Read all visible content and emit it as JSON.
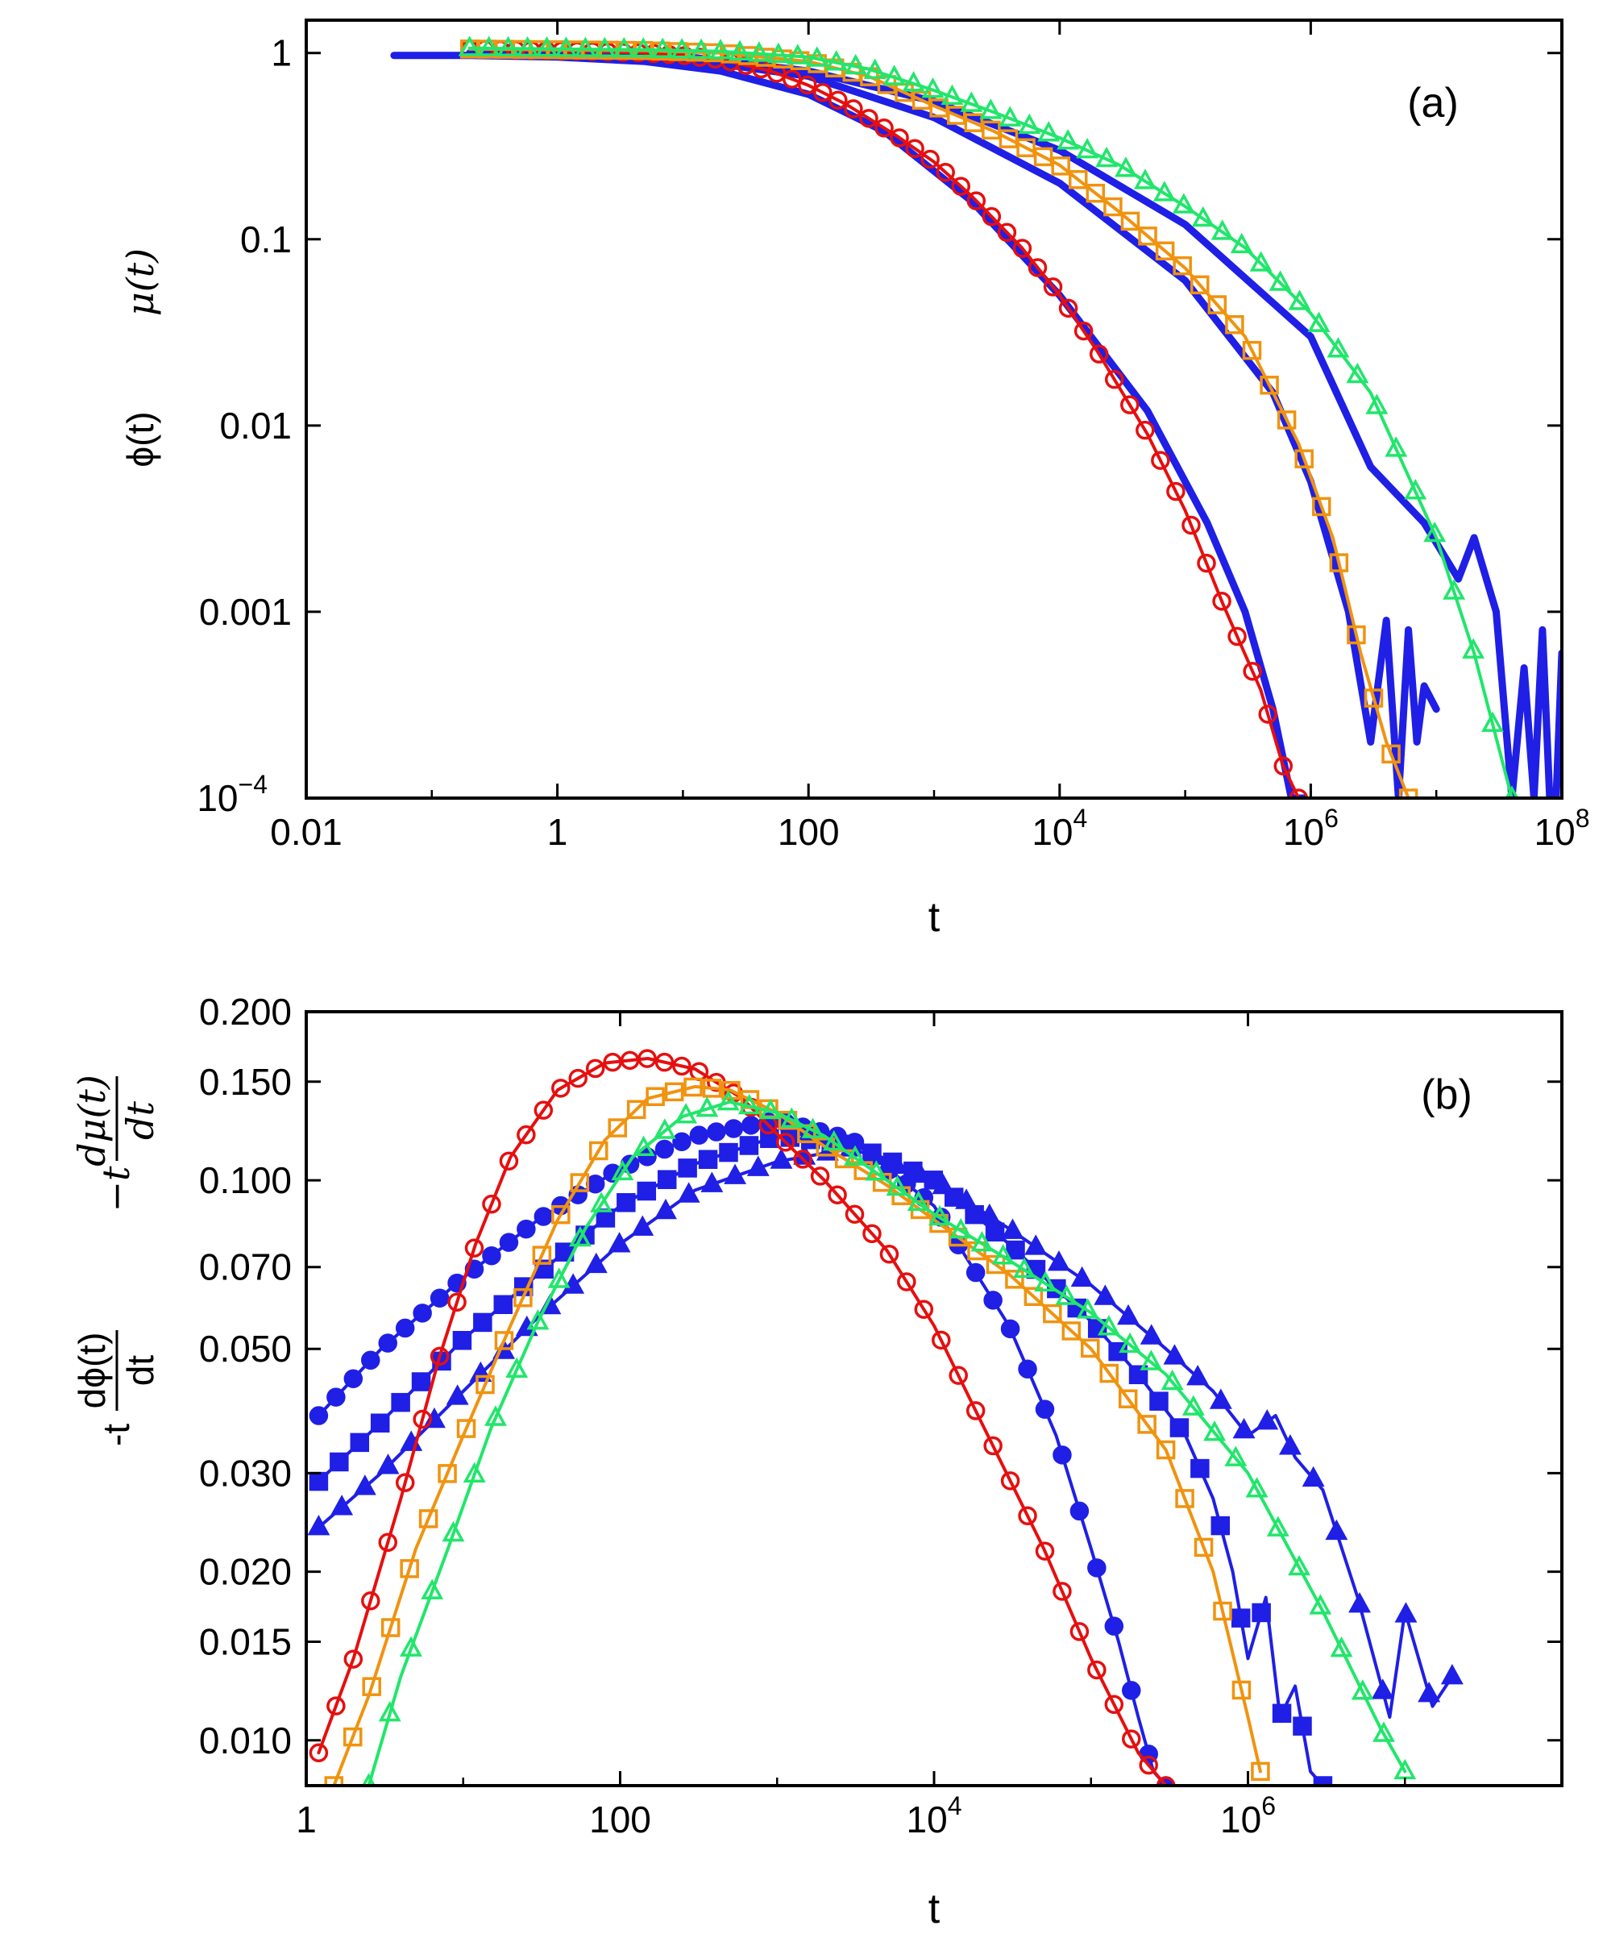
{
  "chart_data": [
    {
      "id": "a",
      "type": "line",
      "panel_label": "(a)",
      "xscale": "log",
      "yscale": "log",
      "xlim": [
        0.01,
        100000000
      ],
      "ylim": [
        0.0001,
        1.5
      ],
      "xlabel": "t",
      "ylabel_parts": [
        "ϕ(t)",
        "μ(t)"
      ],
      "xticks": [
        {
          "value": 0.01,
          "label": "0.01",
          "exp": ""
        },
        {
          "value": 1,
          "label": "1",
          "exp": ""
        },
        {
          "value": 100,
          "label": "100",
          "exp": ""
        },
        {
          "value": 10000,
          "label": "10",
          "exp": "4"
        },
        {
          "value": 1000000,
          "label": "10",
          "exp": "6"
        },
        {
          "value": 100000000,
          "label": "10",
          "exp": "8"
        }
      ],
      "yticks": [
        {
          "value": 1,
          "label": "1",
          "exp": ""
        },
        {
          "value": 0.1,
          "label": "0.1",
          "exp": ""
        },
        {
          "value": 0.01,
          "label": "0.01",
          "exp": ""
        },
        {
          "value": 0.001,
          "label": "0.001",
          "exp": ""
        },
        {
          "value": 0.0001,
          "label": "10",
          "exp": "−4"
        }
      ],
      "series": [
        {
          "name": "phi-1",
          "color": "#1f1fe6",
          "marker": "none",
          "width": 9,
          "x": [
            0.05,
            0.2,
            1,
            5,
            20,
            100,
            400,
            2000,
            10000,
            50000,
            150000,
            300000,
            500000,
            700000,
            900000
          ],
          "y": [
            0.97,
            0.97,
            0.95,
            0.9,
            0.8,
            0.6,
            0.38,
            0.16,
            0.05,
            0.012,
            0.003,
            0.001,
            0.0003,
            0.0001,
            0.0001
          ]
        },
        {
          "name": "phi-2",
          "color": "#1f1fe6",
          "marker": "none",
          "width": 9,
          "x": [
            0.2,
            1,
            10,
            100,
            1000,
            10000,
            100000,
            500000,
            1000000,
            2000000,
            3000000,
            4000000,
            5000000,
            6000000,
            7000000,
            8000000,
            10000000
          ],
          "y": [
            0.99,
            0.98,
            0.93,
            0.75,
            0.45,
            0.2,
            0.06,
            0.015,
            0.005,
            0.001,
            0.0002,
            0.0009,
            0.0001,
            0.0008,
            0.0002,
            0.0004,
            0.0003
          ]
        },
        {
          "name": "phi-3",
          "color": "#1f1fe6",
          "marker": "none",
          "width": 9,
          "x": [
            0.2,
            1,
            10,
            100,
            1000,
            10000,
            100000,
            1000000,
            3000000,
            8000000,
            15000000,
            20000000,
            30000000,
            40000000,
            50000000,
            60000000,
            70000000,
            80000000,
            90000000,
            100000000
          ],
          "y": [
            1,
            0.99,
            0.96,
            0.8,
            0.55,
            0.3,
            0.12,
            0.03,
            0.006,
            0.003,
            0.0015,
            0.0025,
            0.001,
            0.0001,
            0.0005,
            0.0001,
            0.0008,
            0.0001,
            0.0001,
            0.0006
          ]
        },
        {
          "name": "mu-red",
          "color": "#e60f0f",
          "marker": "circle",
          "width": 4,
          "x": [
            0.2,
            0.4,
            1,
            2,
            5,
            10,
            20,
            50,
            100,
            200,
            500,
            1000,
            2000,
            5000,
            10000,
            20000,
            50000,
            100000,
            200000,
            400000,
            600000,
            800000
          ],
          "y": [
            1.05,
            1.04,
            1.03,
            1.02,
            1.0,
            0.97,
            0.92,
            0.8,
            0.67,
            0.53,
            0.36,
            0.26,
            0.17,
            0.09,
            0.05,
            0.025,
            0.009,
            0.0035,
            0.0011,
            0.00038,
            0.00015,
            0.0001
          ]
        },
        {
          "name": "mu-orange",
          "color": "#f0930f",
          "marker": "square",
          "width": 4,
          "x": [
            0.2,
            1,
            5,
            20,
            100,
            300,
            1000,
            3000,
            10000,
            30000,
            100000,
            300000,
            800000,
            1500000,
            2500000,
            4000000,
            6000000
          ],
          "y": [
            1.05,
            1.04,
            1.03,
            1.0,
            0.9,
            0.75,
            0.52,
            0.38,
            0.25,
            0.14,
            0.07,
            0.03,
            0.008,
            0.0025,
            0.0006,
            0.0002,
            0.0001
          ]
        },
        {
          "name": "mu-green",
          "color": "#21e66b",
          "marker": "triangle",
          "width": 4,
          "x": [
            0.2,
            1,
            5,
            20,
            100,
            300,
            1000,
            3000,
            10000,
            30000,
            100000,
            300000,
            1000000,
            3000000,
            10000000,
            20000000,
            40000000
          ],
          "y": [
            1.06,
            1.05,
            1.04,
            1.02,
            0.95,
            0.82,
            0.63,
            0.48,
            0.35,
            0.25,
            0.15,
            0.09,
            0.04,
            0.015,
            0.0025,
            0.0006,
            0.0001
          ]
        }
      ]
    },
    {
      "id": "b",
      "type": "line",
      "panel_label": "(b)",
      "xscale": "log",
      "yscale": "log",
      "xlim": [
        1,
        100000000
      ],
      "ylim": [
        0.0083,
        0.2
      ],
      "xlabel": "t",
      "xticks": [
        {
          "value": 1,
          "label": "1",
          "exp": ""
        },
        {
          "value": 100,
          "label": "100",
          "exp": ""
        },
        {
          "value": 10000,
          "label": "10",
          "exp": "4"
        },
        {
          "value": 1000000,
          "label": "10",
          "exp": "6"
        }
      ],
      "yticks": [
        {
          "value": 0.2,
          "label": "0.200",
          "exp": ""
        },
        {
          "value": 0.15,
          "label": "0.150",
          "exp": ""
        },
        {
          "value": 0.1,
          "label": "0.100",
          "exp": ""
        },
        {
          "value": 0.07,
          "label": "0.070",
          "exp": ""
        },
        {
          "value": 0.05,
          "label": "0.050",
          "exp": ""
        },
        {
          "value": 0.03,
          "label": "0.030",
          "exp": ""
        },
        {
          "value": 0.02,
          "label": "0.020",
          "exp": ""
        },
        {
          "value": 0.015,
          "label": "0.015",
          "exp": ""
        },
        {
          "value": 0.01,
          "label": "0.010",
          "exp": ""
        }
      ],
      "series": [
        {
          "name": "phi-deriv-circle",
          "color": "#1f1fe6",
          "marker": "circle-filled",
          "width": 4,
          "x": [
            1.2,
            3,
            10,
            30,
            100,
            300,
            1000,
            3000,
            10000,
            30000,
            60000,
            100000,
            150000,
            200000,
            250000,
            300000
          ],
          "y": [
            0.038,
            0.05,
            0.067,
            0.085,
            0.105,
            0.12,
            0.128,
            0.118,
            0.09,
            0.055,
            0.035,
            0.022,
            0.015,
            0.011,
            0.0088,
            0.0083
          ]
        },
        {
          "name": "phi-deriv-square",
          "color": "#1f1fe6",
          "marker": "square-filled",
          "width": 4,
          "x": [
            1.2,
            3,
            10,
            30,
            100,
            300,
            1000,
            3000,
            10000,
            30000,
            100000,
            200000,
            400000,
            600000,
            800000,
            1000000,
            1300000,
            1600000,
            2000000,
            2500000,
            3000000
          ],
          "y": [
            0.029,
            0.037,
            0.052,
            0.068,
            0.09,
            0.107,
            0.12,
            0.116,
            0.1,
            0.077,
            0.056,
            0.045,
            0.035,
            0.027,
            0.02,
            0.014,
            0.018,
            0.011,
            0.0125,
            0.0088,
            0.0083
          ]
        },
        {
          "name": "phi-deriv-triangle",
          "color": "#1f1fe6",
          "marker": "triangle-filled",
          "width": 4,
          "x": [
            1.2,
            3,
            10,
            30,
            100,
            300,
            1000,
            3000,
            10000,
            30000,
            100000,
            300000,
            600000,
            1000000,
            1500000,
            2000000,
            3000000,
            5000000,
            8000000,
            10000000,
            15000000,
            20000000
          ],
          "y": [
            0.024,
            0.03,
            0.042,
            0.057,
            0.077,
            0.096,
            0.108,
            0.114,
            0.1,
            0.082,
            0.065,
            0.05,
            0.042,
            0.035,
            0.038,
            0.032,
            0.028,
            0.018,
            0.011,
            0.017,
            0.0115,
            0.013
          ]
        },
        {
          "name": "mu-deriv-red",
          "color": "#e60f0f",
          "marker": "circle",
          "width": 4,
          "x": [
            1.2,
            2,
            4,
            7,
            12,
            20,
            40,
            80,
            150,
            300,
            600,
            1000,
            2000,
            5000,
            10000,
            20000,
            50000,
            100000,
            200000,
            300000
          ],
          "y": [
            0.0095,
            0.014,
            0.027,
            0.048,
            0.077,
            0.11,
            0.145,
            0.162,
            0.165,
            0.158,
            0.14,
            0.121,
            0.1,
            0.075,
            0.055,
            0.037,
            0.022,
            0.014,
            0.0095,
            0.0083
          ]
        },
        {
          "name": "mu-deriv-orange",
          "color": "#f0930f",
          "marker": "square",
          "width": 4,
          "x": [
            1.5,
            2.5,
            5,
            10,
            20,
            40,
            80,
            150,
            300,
            500,
            1000,
            2000,
            5000,
            10000,
            30000,
            100000,
            300000,
            600000,
            1000000,
            1200000
          ],
          "y": [
            0.0083,
            0.012,
            0.022,
            0.035,
            0.055,
            0.085,
            0.118,
            0.14,
            0.147,
            0.145,
            0.132,
            0.115,
            0.098,
            0.085,
            0.068,
            0.05,
            0.033,
            0.02,
            0.011,
            0.0088
          ]
        },
        {
          "name": "mu-deriv-green",
          "color": "#21e66b",
          "marker": "triangle",
          "width": 4,
          "x": [
            2.5,
            4,
            8,
            15,
            30,
            60,
            120,
            250,
            500,
            1000,
            2000,
            5000,
            10000,
            30000,
            100000,
            300000,
            1000000,
            3000000,
            7000000,
            10000000
          ],
          "y": [
            0.0083,
            0.013,
            0.022,
            0.036,
            0.056,
            0.082,
            0.11,
            0.13,
            0.138,
            0.132,
            0.12,
            0.1,
            0.087,
            0.072,
            0.058,
            0.045,
            0.03,
            0.017,
            0.0105,
            0.0088
          ]
        }
      ]
    }
  ]
}
